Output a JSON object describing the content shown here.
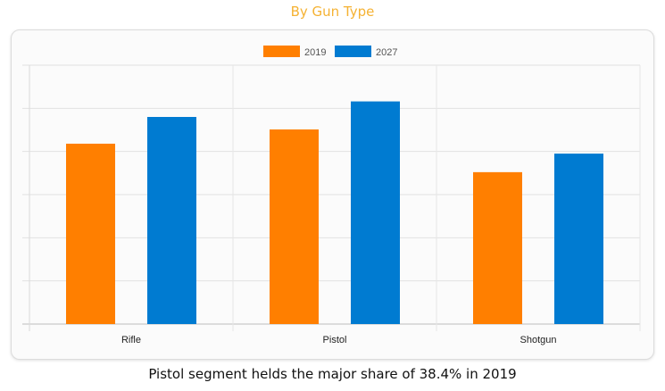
{
  "page": {
    "title": "By Gun Type",
    "caption": "Pistol segment helds the major share of 38.4% in 2019"
  },
  "chart_data": {
    "type": "bar",
    "title": "By Gun Type",
    "xlabel": "",
    "ylabel": "",
    "categories": [
      "Rifle",
      "Pistol",
      "Shotgun"
    ],
    "series": [
      {
        "name": "2019",
        "color": "#ff7f00",
        "values": [
          4.18,
          4.51,
          3.52
        ]
      },
      {
        "name": "2027",
        "color": "#007bd1",
        "values": [
          4.8,
          5.16,
          3.95
        ]
      }
    ],
    "ylim": [
      0,
      6
    ],
    "y_ticks_labeled": false,
    "grid": true,
    "legend": "top-center"
  }
}
